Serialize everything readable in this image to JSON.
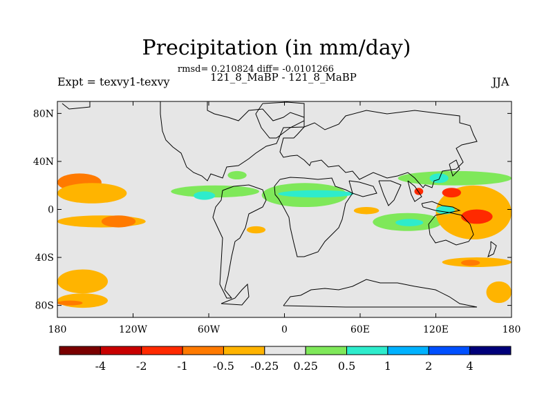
{
  "header": {
    "title": "Precipitation (in mm/day)",
    "stats": "rmsd= 0.210824 diff= -0.0101266",
    "case": "121_8_MaBP - 121_8_MaBP",
    "experiment": "Expt = texvy1-texvy",
    "season": "JJA"
  },
  "axes": {
    "lat_labels": [
      "80N",
      "40N",
      "0",
      "40S",
      "80S"
    ],
    "lat_values": [
      80,
      40,
      0,
      -40,
      -80
    ],
    "lon_labels": [
      "180",
      "120W",
      "60W",
      "0",
      "60E",
      "120E",
      "180"
    ],
    "lon_values": [
      -180,
      -120,
      -60,
      0,
      60,
      120,
      180
    ]
  },
  "colorbar": {
    "colors": [
      "#7a0000",
      "#c80000",
      "#ff2a00",
      "#ff7a00",
      "#ffb400",
      "#e6e6e6",
      "#7fe85a",
      "#2eeccc",
      "#00b2ff",
      "#0050ff",
      "#00007a"
    ],
    "labels": [
      "-4",
      "-2",
      "-1",
      "-0.5",
      "-0.25",
      "0.25",
      "0.5",
      "1",
      "2",
      "4"
    ]
  },
  "chart_data": {
    "type": "heatmap",
    "title": "Precipitation (in mm/day)",
    "variable": "Precipitation difference",
    "units": "mm/day",
    "season": "JJA",
    "lon_range": [
      -180,
      180
    ],
    "lat_range": [
      -90,
      90
    ],
    "levels": [
      -4,
      -2,
      -1,
      -0.5,
      -0.25,
      0.25,
      0.5,
      1,
      2,
      4
    ],
    "background_value_range": [
      -0.25,
      0.25
    ],
    "anomaly_regions": [
      {
        "lon": [
          -180,
          -145
        ],
        "lat": [
          15,
          30
        ],
        "class": "-0.5"
      },
      {
        "lon": [
          -180,
          -125
        ],
        "lat": [
          5,
          22
        ],
        "class": "-0.25"
      },
      {
        "lon": [
          -180,
          -110
        ],
        "lat": [
          -15,
          -5
        ],
        "class": "-0.25"
      },
      {
        "lon": [
          -145,
          -118
        ],
        "lat": [
          -15,
          -5
        ],
        "class": "-0.5"
      },
      {
        "lon": [
          -180,
          -140
        ],
        "lat": [
          -70,
          -50
        ],
        "class": "-0.25"
      },
      {
        "lon": [
          -180,
          -140
        ],
        "lat": [
          -82,
          -70
        ],
        "class": "-0.25"
      },
      {
        "lon": [
          -180,
          -160
        ],
        "lat": [
          -80,
          -76
        ],
        "class": "-0.5"
      },
      {
        "lon": [
          -90,
          -20
        ],
        "lat": [
          10,
          20
        ],
        "class": "0.25"
      },
      {
        "lon": [
          -72,
          -55
        ],
        "lat": [
          8,
          15
        ],
        "class": "0.5"
      },
      {
        "lon": [
          -45,
          -30
        ],
        "lat": [
          25,
          32
        ],
        "class": "0.25"
      },
      {
        "lon": [
          -18,
          50
        ],
        "lat": [
          2,
          22
        ],
        "class": "0.25"
      },
      {
        "lon": [
          -5,
          55
        ],
        "lat": [
          10,
          16
        ],
        "class": "0.5"
      },
      {
        "lon": [
          70,
          125
        ],
        "lat": [
          -18,
          -3
        ],
        "class": "0.25"
      },
      {
        "lon": [
          88,
          110
        ],
        "lat": [
          -14,
          -8
        ],
        "class": "0.5"
      },
      {
        "lon": [
          90,
          180
        ],
        "lat": [
          20,
          32
        ],
        "class": "0.25"
      },
      {
        "lon": [
          115,
          130
        ],
        "lat": [
          22,
          30
        ],
        "class": "0.5"
      },
      {
        "lon": [
          103,
          110
        ],
        "lat": [
          12,
          18
        ],
        "class": "-1"
      },
      {
        "lon": [
          120,
          180
        ],
        "lat": [
          -25,
          20
        ],
        "class": "-0.25"
      },
      {
        "lon": [
          140,
          165
        ],
        "lat": [
          -12,
          0
        ],
        "class": "-1"
      },
      {
        "lon": [
          125,
          140
        ],
        "lat": [
          10,
          18
        ],
        "class": "-1"
      },
      {
        "lon": [
          120,
          135
        ],
        "lat": [
          -4,
          3
        ],
        "class": "0.5"
      },
      {
        "lon": [
          55,
          75
        ],
        "lat": [
          -4,
          2
        ],
        "class": "-0.25"
      },
      {
        "lon": [
          125,
          180
        ],
        "lat": [
          -48,
          -40
        ],
        "class": "-0.25"
      },
      {
        "lon": [
          140,
          155
        ],
        "lat": [
          -47,
          -42
        ],
        "class": "-0.5"
      },
      {
        "lon": [
          160,
          180
        ],
        "lat": [
          -78,
          -60
        ],
        "class": "-0.25"
      },
      {
        "lon": [
          -30,
          -15
        ],
        "lat": [
          -20,
          -14
        ],
        "class": "-0.25"
      }
    ]
  }
}
